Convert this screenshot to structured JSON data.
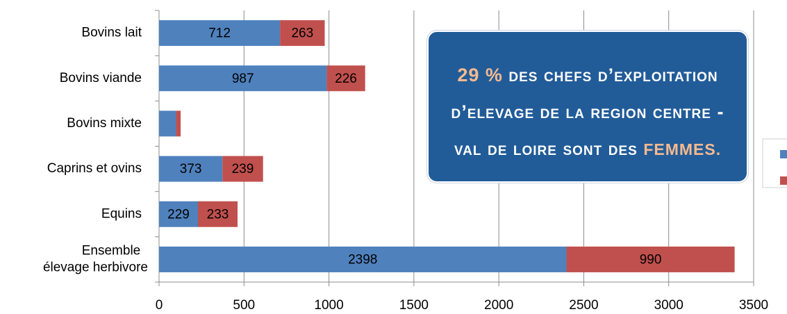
{
  "chart_data": {
    "type": "stacked_barh",
    "categories": [
      "Bovins lait",
      "Bovins viande",
      "Bovins mixte",
      "Caprins et ovins",
      "Equins",
      "Ensemble élevage herbivore"
    ],
    "series": [
      {
        "color": "#4f81bd",
        "values": [
          712,
          987,
          100,
          373,
          229,
          2398
        ]
      },
      {
        "color": "#c0504d",
        "values": [
          263,
          226,
          27,
          239,
          233,
          990
        ]
      }
    ],
    "xlim": [
      0,
      3500
    ],
    "xticks": [
      0,
      500,
      1000,
      1500,
      2000,
      2500,
      3000,
      3500
    ],
    "grid": true,
    "annotation": [
      {
        "text": "29 %",
        "highlight": true
      },
      {
        "text": " des chefs d’exploitation d’elevage de la region Centre - Val de Loire sont des ",
        "highlight": false
      },
      {
        "text": "FEMMES.",
        "highlight": true
      }
    ]
  }
}
